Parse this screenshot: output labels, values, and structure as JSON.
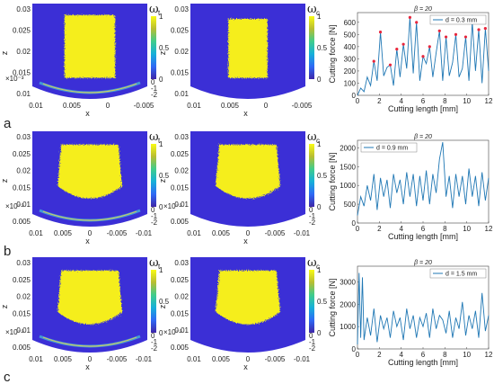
{
  "colors": {
    "domain_bg": "#3b2fd6",
    "field": "#f5ee1a",
    "line": "#1f77b4",
    "peak": "#e8263c",
    "colormap": [
      "#3e26a8",
      "#2e69f5",
      "#16b0d9",
      "#3fcc8c",
      "#b8bd32",
      "#f9fb15"
    ]
  },
  "rows": [
    {
      "label": "a",
      "maps": [
        {
          "symbol": "ωt",
          "shape": "rect",
          "has_arc_band": true,
          "y_ticks": [
            "0.03",
            "0.025",
            "0.02",
            "0.015",
            "0.01"
          ],
          "y_label": "z",
          "x_ticks": [
            "0.01",
            "0.005",
            "0",
            "-0.005"
          ],
          "x_label": "x",
          "offset_note": "×10⁻³",
          "offset_ticks": [
            "0",
            "-1",
            "-2"
          ],
          "cbar_ticks": [
            "1",
            "0.5",
            "0"
          ]
        },
        {
          "symbol": "ωc",
          "shape": "rect_narrow",
          "has_arc_band": false,
          "y_ticks": [
            "0.03",
            "0.025",
            "0.02",
            "0.015",
            "0.01"
          ],
          "y_label": "z",
          "x_ticks": [
            "0.01",
            "0.005",
            "0",
            "-0.005"
          ],
          "x_label": "x",
          "offset_note": "",
          "offset_ticks": [],
          "cbar_ticks": [
            "1",
            "0.5",
            "0"
          ]
        }
      ]
    },
    {
      "label": "b",
      "maps": [
        {
          "symbol": "ωt",
          "shape": "cup",
          "has_arc_band": true,
          "y_ticks": [
            "0.03",
            "0.025",
            "0.02",
            "0.015",
            "0.01",
            "0.005"
          ],
          "y_label": "z",
          "x_ticks": [
            "0.01",
            "0.005",
            "0",
            "-0.005",
            "-0.01"
          ],
          "x_label": "x",
          "offset_note": "×10⁻³",
          "offset_ticks": [
            "0",
            "-1",
            "-2"
          ],
          "cbar_ticks": [
            "1",
            "0.5",
            "0"
          ]
        },
        {
          "symbol": "ωc",
          "shape": "cup",
          "has_arc_band": false,
          "y_ticks": [
            "0.03",
            "0.025",
            "0.02",
            "0.015",
            "0.01",
            "0.005"
          ],
          "y_label": "z",
          "x_ticks": [
            "0.01",
            "0.005",
            "0",
            "-0.005",
            "-0.01"
          ],
          "x_label": "x",
          "offset_note": "×10⁻³",
          "offset_ticks": [
            "0",
            "-1",
            "-2"
          ],
          "cbar_ticks": [
            "1",
            "0.5",
            "0"
          ]
        }
      ]
    },
    {
      "label": "c",
      "maps": [
        {
          "symbol": "ωt",
          "shape": "cup",
          "has_arc_band": true,
          "y_ticks": [
            "0.03",
            "0.025",
            "0.02",
            "0.015",
            "0.01",
            "0.005"
          ],
          "y_label": "z",
          "x_ticks": [
            "0.01",
            "0.005",
            "0",
            "-0.005",
            "-0.01"
          ],
          "x_label": "x",
          "offset_note": "×10⁻³",
          "offset_ticks": [
            "0",
            "-1",
            "-2"
          ],
          "cbar_ticks": [
            "1",
            "0.5",
            "0"
          ]
        },
        {
          "symbol": "ωc",
          "shape": "cup",
          "has_arc_band": false,
          "y_ticks": [
            "0.03",
            "0.025",
            "0.02",
            "0.015",
            "0.01",
            "0.005"
          ],
          "y_label": "z",
          "x_ticks": [
            "0.01",
            "0.005",
            "0",
            "-0.005",
            "-0.01"
          ],
          "x_label": "x",
          "offset_note": "×10⁻³",
          "offset_ticks": [
            "0",
            "-1",
            "-2"
          ],
          "cbar_ticks": [
            "1",
            "0.5",
            "0"
          ]
        }
      ]
    }
  ],
  "chart_data": [
    {
      "type": "line",
      "title": "β = 20",
      "xlabel": "Cutting length [mm]",
      "ylabel": "Cutting force [N]",
      "legend": "top-right",
      "grid": false,
      "series": [
        {
          "name": "d = 0.3 mm",
          "x": [
            0,
            0.3,
            0.6,
            0.9,
            1.2,
            1.5,
            1.8,
            2.1,
            2.4,
            2.7,
            3.0,
            3.3,
            3.6,
            3.9,
            4.2,
            4.5,
            4.8,
            5.1,
            5.4,
            5.7,
            6.0,
            6.3,
            6.6,
            6.9,
            7.2,
            7.5,
            7.8,
            8.1,
            8.4,
            8.7,
            9.0,
            9.3,
            9.6,
            9.9,
            10.2,
            10.5,
            10.8,
            11.1,
            11.4,
            11.7,
            12.0
          ],
          "y": [
            0,
            60,
            30,
            150,
            80,
            280,
            120,
            520,
            160,
            230,
            250,
            80,
            380,
            150,
            420,
            220,
            640,
            180,
            600,
            120,
            320,
            260,
            400,
            150,
            350,
            530,
            120,
            480,
            160,
            270,
            500,
            150,
            220,
            480,
            120,
            600,
            200,
            540,
            100,
            550,
            200
          ]
        }
      ],
      "peaks_marked": true,
      "xticks": [
        "0",
        "2",
        "4",
        "6",
        "8",
        "10",
        "12"
      ],
      "yticks": [
        "0",
        "100",
        "200",
        "300",
        "400",
        "500",
        "600"
      ],
      "xlim": [
        0,
        12
      ],
      "ylim": [
        0,
        680
      ]
    },
    {
      "type": "line",
      "title": "β = 20",
      "xlabel": "Cutting length [mm]",
      "ylabel": "Cutting force [N]",
      "legend": "top-left",
      "grid": false,
      "series": [
        {
          "name": "d = 0.9 mm",
          "x": [
            0,
            0.3,
            0.6,
            0.9,
            1.2,
            1.5,
            1.8,
            2.1,
            2.4,
            2.7,
            3.0,
            3.3,
            3.6,
            3.9,
            4.2,
            4.5,
            4.8,
            5.1,
            5.4,
            5.7,
            6.0,
            6.3,
            6.6,
            6.9,
            7.2,
            7.5,
            7.8,
            8.1,
            8.4,
            8.7,
            9.0,
            9.3,
            9.6,
            9.9,
            10.2,
            10.5,
            10.8,
            11.1,
            11.4,
            11.7,
            12.0
          ],
          "y": [
            200,
            700,
            450,
            1000,
            600,
            1300,
            350,
            1200,
            700,
            1150,
            400,
            1300,
            800,
            1150,
            500,
            1350,
            700,
            1300,
            450,
            1250,
            600,
            1400,
            500,
            1300,
            800,
            1700,
            2150,
            700,
            1250,
            400,
            1300,
            700,
            1250,
            500,
            1450,
            700,
            1250,
            450,
            1350,
            600,
            1200
          ]
        }
      ],
      "peaks_marked": false,
      "xticks": [
        "0",
        "2",
        "4",
        "6",
        "8",
        "10",
        "12"
      ],
      "yticks": [
        "0",
        "500",
        "1000",
        "1500",
        "2000"
      ],
      "xlim": [
        0,
        12
      ],
      "ylim": [
        0,
        2200
      ]
    },
    {
      "type": "line",
      "title": "β = 20",
      "xlabel": "Cutting length [mm]",
      "ylabel": "Cutting force [N]",
      "legend": "top-right",
      "grid": false,
      "series": [
        {
          "name": "d = 1.5 mm",
          "x": [
            0,
            0.15,
            0.3,
            0.45,
            0.6,
            0.9,
            1.2,
            1.5,
            1.8,
            2.1,
            2.4,
            2.7,
            3.0,
            3.3,
            3.6,
            3.9,
            4.2,
            4.5,
            4.8,
            5.1,
            5.4,
            5.7,
            6.0,
            6.3,
            6.6,
            6.9,
            7.2,
            7.5,
            7.8,
            8.1,
            8.4,
            8.7,
            9.0,
            9.3,
            9.6,
            9.9,
            10.2,
            10.5,
            10.8,
            11.1,
            11.4,
            11.7,
            12.0
          ],
          "y": [
            200,
            3400,
            500,
            3200,
            400,
            1400,
            600,
            1800,
            300,
            1500,
            900,
            1400,
            500,
            1700,
            1000,
            1400,
            400,
            1800,
            900,
            1500,
            500,
            1400,
            1000,
            1600,
            500,
            1800,
            900,
            1500,
            1300,
            700,
            1700,
            500,
            1400,
            900,
            2100,
            600,
            1500,
            900,
            1700,
            500,
            2500,
            800,
            1500
          ]
        }
      ],
      "peaks_marked": false,
      "xticks": [
        "0",
        "2",
        "4",
        "6",
        "8",
        "10",
        "12"
      ],
      "yticks": [
        "0",
        "1000",
        "2000",
        "3000"
      ],
      "xlim": [
        0,
        12
      ],
      "ylim": [
        0,
        3700
      ]
    }
  ]
}
